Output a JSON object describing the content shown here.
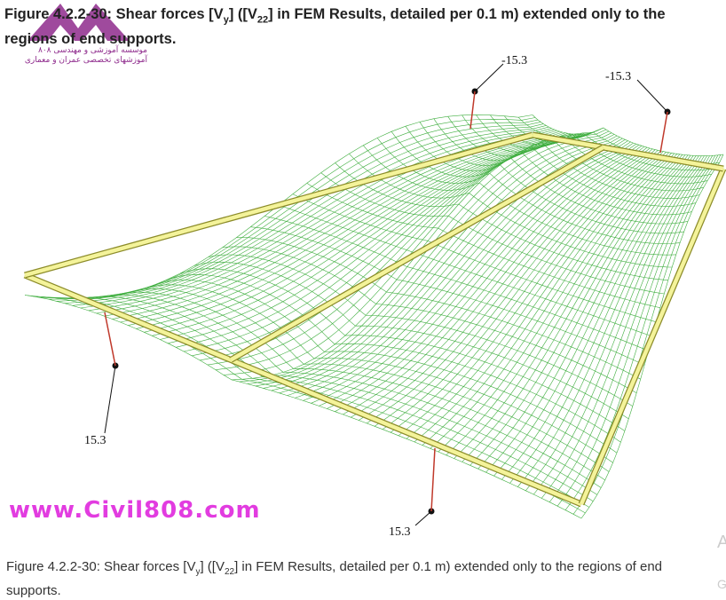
{
  "title": {
    "prefix": "Figure 4.2.2-30: Shear forces [V",
    "sub1": "y",
    "mid": "] ([V",
    "sub2": "22",
    "suffix": "] in FEM Results, detailed per 0.1 m) extended only to the regions of end supports."
  },
  "caption": {
    "prefix": "Figure 4.2.2-30: Shear forces [V",
    "sub1": "y",
    "mid": "] ([V",
    "sub2": "22",
    "suffix": "] in FEM Results, detailed per 0.1 m) extended only to the regions of end supports."
  },
  "figure": {
    "labels": [
      "15.3",
      "15.3",
      "-15.3",
      "-15.3"
    ],
    "colors": {
      "mesh": "#3fae3f",
      "slab": "#f4f39a",
      "slab_edge": "#8c8c2a",
      "marker": "#c0392b"
    }
  },
  "watermark": {
    "logo_line1": "موسسه آموزشی و مهندسی ۸۰۸",
    "logo_line2": "آموزشهای تخصصی عمران و معماری",
    "text": "www.Civil808.com",
    "logo_color": "#8e2a8c",
    "text_color": "#e23ce0"
  },
  "edge_fragments": [
    "A",
    "G"
  ]
}
